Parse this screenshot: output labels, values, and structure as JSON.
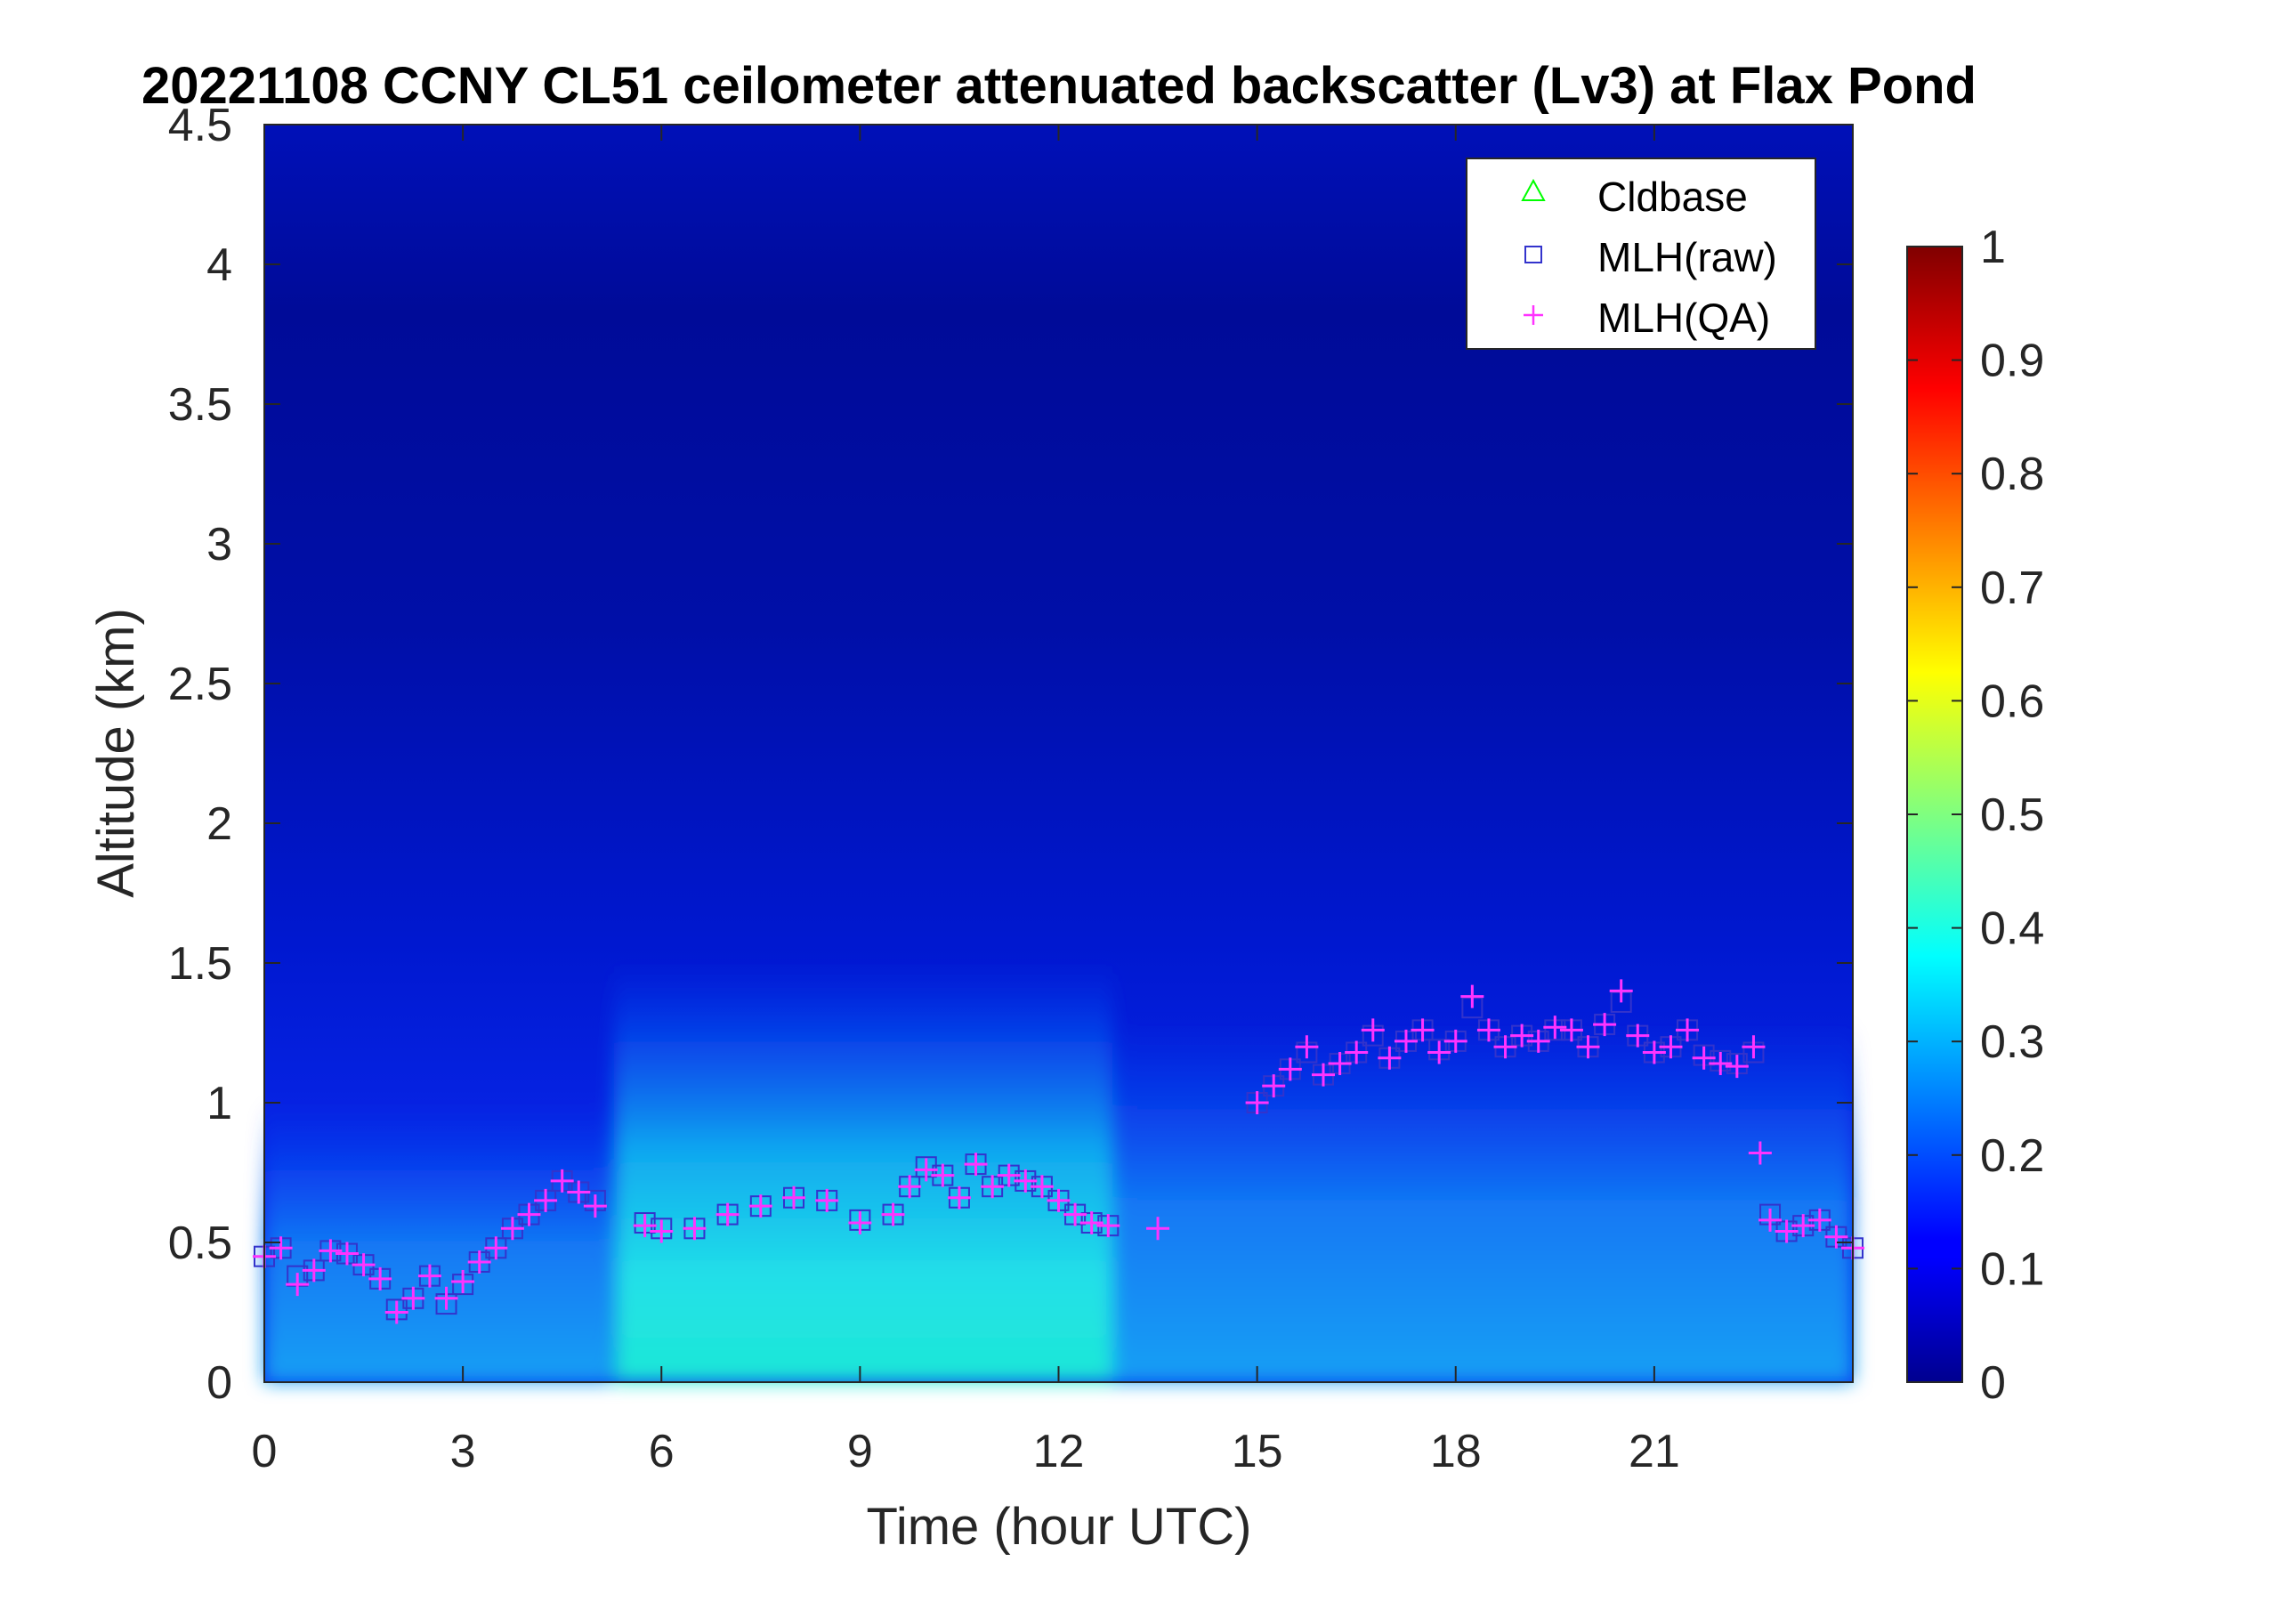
{
  "chart_data": {
    "type": "heatmap",
    "title": "20221108 CCNY CL51 ceilometer attenuated backscatter (Lv3) at Flax Pond",
    "xlabel": "Time (hour UTC)",
    "ylabel": "Altitude (km)",
    "xlim": [
      0,
      24
    ],
    "ylim": [
      0,
      4.5
    ],
    "xticks": [
      "0",
      "3",
      "6",
      "9",
      "12",
      "15",
      "18",
      "21"
    ],
    "yticks": [
      "0",
      "0.5",
      "1",
      "1.5",
      "2",
      "2.5",
      "3",
      "3.5",
      "4",
      "4.5"
    ],
    "colorbar": {
      "colormap": "jet",
      "range": [
        0,
        1
      ],
      "ticks": [
        "0",
        "0.1",
        "0.2",
        "0.3",
        "0.4",
        "0.5",
        "0.6",
        "0.7",
        "0.8",
        "0.9",
        "1"
      ]
    },
    "legend": {
      "position": "top-right",
      "entries": [
        {
          "name": "Cldbase",
          "marker": "triangle",
          "color": "#00ff00"
        },
        {
          "name": "MLH(raw)",
          "marker": "square",
          "color": "#3333cc"
        },
        {
          "name": "MLH(QA)",
          "marker": "plus",
          "color": "#ff33ff"
        }
      ]
    },
    "series": [
      {
        "name": "Cldbase",
        "x": [],
        "y": []
      },
      {
        "name": "MLH(raw)",
        "x": [
          0,
          0.25,
          0.5,
          0.75,
          1,
          1.25,
          1.5,
          1.75,
          2,
          2.25,
          2.5,
          2.75,
          3,
          3.25,
          3.5,
          3.75,
          4,
          4.25,
          4.5,
          4.75,
          5,
          5.75,
          6,
          6.5,
          7,
          7.5,
          8,
          8.5,
          9,
          9.5,
          9.75,
          10,
          10.25,
          10.5,
          10.75,
          11,
          11.25,
          11.5,
          11.75,
          12,
          12.25,
          12.5,
          12.75,
          15,
          15.25,
          15.5,
          15.75,
          16,
          16.25,
          16.5,
          16.75,
          17,
          17.25,
          17.5,
          17.75,
          18,
          18.25,
          18.5,
          18.75,
          19,
          19.25,
          19.5,
          19.75,
          20,
          20.25,
          20.5,
          20.75,
          21,
          21.25,
          21.5,
          21.75,
          22,
          22.25,
          22.5,
          22.75,
          23,
          23.25,
          23.5,
          23.75,
          24
        ],
        "y": [
          0.45,
          0.48,
          0.38,
          0.4,
          0.47,
          0.46,
          0.42,
          0.37,
          0.26,
          0.3,
          0.38,
          0.28,
          0.35,
          0.43,
          0.48,
          0.55,
          0.6,
          0.65,
          0.72,
          0.68,
          0.65,
          0.57,
          0.55,
          0.55,
          0.6,
          0.63,
          0.66,
          0.65,
          0.58,
          0.6,
          0.7,
          0.77,
          0.74,
          0.66,
          0.78,
          0.7,
          0.74,
          0.72,
          0.7,
          0.65,
          0.6,
          0.57,
          0.56,
          1.0,
          1.06,
          1.12,
          1.18,
          1.1,
          1.14,
          1.18,
          1.24,
          1.16,
          1.22,
          1.26,
          1.19,
          1.22,
          1.34,
          1.26,
          1.2,
          1.24,
          1.22,
          1.26,
          1.26,
          1.2,
          1.28,
          1.36,
          1.24,
          1.18,
          1.2,
          1.26,
          1.17,
          1.15,
          1.14,
          1.18,
          0.6,
          0.54,
          0.56,
          0.58,
          0.52,
          0.48
        ]
      },
      {
        "name": "MLH(QA)",
        "x": [
          0,
          0.25,
          0.5,
          0.75,
          1,
          1.25,
          1.5,
          1.75,
          2,
          2.25,
          2.5,
          2.75,
          3,
          3.25,
          3.5,
          3.75,
          4,
          4.25,
          4.5,
          4.75,
          5,
          5.75,
          6,
          6.5,
          7,
          7.5,
          8,
          8.5,
          9,
          9.5,
          9.75,
          10,
          10.25,
          10.5,
          10.75,
          11,
          11.25,
          11.5,
          11.75,
          12,
          12.25,
          12.5,
          12.75,
          13.5,
          15,
          15.25,
          15.5,
          15.75,
          16,
          16.25,
          16.5,
          16.75,
          17,
          17.25,
          17.5,
          17.75,
          18,
          18.25,
          18.5,
          18.75,
          19,
          19.25,
          19.5,
          19.75,
          20,
          20.25,
          20.5,
          20.75,
          21,
          21.25,
          21.5,
          21.75,
          22,
          22.25,
          22.5,
          22.6,
          22.75,
          23,
          23.25,
          23.5,
          23.75,
          24
        ],
        "y": [
          0.45,
          0.48,
          0.35,
          0.4,
          0.47,
          0.46,
          0.42,
          0.37,
          0.25,
          0.3,
          0.38,
          0.3,
          0.36,
          0.43,
          0.48,
          0.55,
          0.6,
          0.65,
          0.72,
          0.68,
          0.63,
          0.56,
          0.54,
          0.55,
          0.6,
          0.63,
          0.66,
          0.65,
          0.57,
          0.6,
          0.7,
          0.76,
          0.74,
          0.66,
          0.78,
          0.7,
          0.74,
          0.72,
          0.7,
          0.65,
          0.6,
          0.57,
          0.56,
          0.55,
          1.0,
          1.06,
          1.12,
          1.2,
          1.1,
          1.14,
          1.18,
          1.26,
          1.16,
          1.22,
          1.26,
          1.18,
          1.22,
          1.38,
          1.26,
          1.2,
          1.24,
          1.22,
          1.27,
          1.26,
          1.2,
          1.28,
          1.4,
          1.24,
          1.18,
          1.2,
          1.26,
          1.16,
          1.14,
          1.13,
          1.2,
          0.82,
          0.58,
          0.54,
          0.56,
          0.58,
          0.52,
          0.48
        ]
      }
    ],
    "grid": false
  }
}
